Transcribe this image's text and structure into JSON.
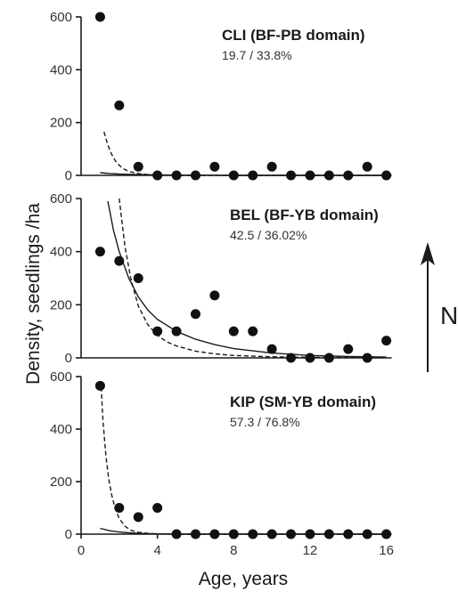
{
  "figure": {
    "ylabel": "Density, seedlings /ha",
    "xlabel": "Age, years",
    "north_label": "N",
    "colors": {
      "ink": "#1a1a1a",
      "points": "#111111"
    }
  },
  "chart_data": [
    {
      "type": "scatter",
      "title": "CLI (BF-PB domain)",
      "subtitle": "19.7 / 33.8%",
      "ylim": [
        0,
        600
      ],
      "yticks": [
        0,
        200,
        400,
        600
      ],
      "xlim": [
        0,
        17
      ],
      "x": [
        1,
        2,
        3,
        4,
        5,
        6,
        7,
        8,
        9,
        10,
        11,
        12,
        13,
        14,
        15,
        16
      ],
      "values": [
        600,
        265,
        33,
        0,
        0,
        0,
        33,
        0,
        0,
        33,
        0,
        0,
        0,
        0,
        33,
        0
      ],
      "fits": [
        {
          "style": "solid",
          "x": [
            1,
            1.5,
            2,
            2.5,
            3,
            4,
            5,
            6,
            8,
            10,
            12,
            14,
            16
          ],
          "y": [
            10,
            7,
            5,
            4,
            3,
            2,
            1,
            1,
            0,
            0,
            0,
            0,
            0
          ]
        },
        {
          "style": "dashed",
          "x": [
            1.2,
            1.4,
            1.6,
            1.8,
            2,
            2.2,
            2.5,
            3,
            3.5,
            4,
            5,
            6,
            8,
            10,
            12,
            14,
            16
          ],
          "y": [
            165,
            115,
            80,
            55,
            38,
            26,
            15,
            7,
            3,
            1,
            0,
            0,
            0,
            0,
            0,
            0,
            0
          ]
        }
      ]
    },
    {
      "type": "scatter",
      "title": "BEL (BF-YB domain)",
      "subtitle": "42.5  / 36.02%",
      "ylim": [
        0,
        600
      ],
      "yticks": [
        0,
        200,
        400,
        600
      ],
      "xlim": [
        0,
        17
      ],
      "x": [
        1,
        2,
        3,
        4,
        5,
        6,
        7,
        8,
        9,
        10,
        11,
        12,
        13,
        14,
        15,
        16
      ],
      "values": [
        400,
        365,
        300,
        100,
        100,
        165,
        235,
        100,
        100,
        33,
        0,
        0,
        0,
        33,
        0,
        65
      ],
      "fits": [
        {
          "style": "solid",
          "x": [
            1.4,
            1.7,
            2,
            2.5,
            3,
            3.5,
            4,
            5,
            6,
            7,
            8,
            10,
            12,
            14,
            16
          ],
          "y": [
            590,
            480,
            400,
            300,
            230,
            180,
            145,
            100,
            70,
            50,
            35,
            18,
            9,
            5,
            3
          ]
        },
        {
          "style": "dashed",
          "x": [
            2,
            2.3,
            2.6,
            3,
            3.5,
            4,
            4.5,
            5,
            6,
            7,
            8,
            10,
            12,
            14,
            16
          ],
          "y": [
            600,
            420,
            300,
            195,
            125,
            85,
            60,
            45,
            25,
            15,
            9,
            4,
            2,
            1,
            0
          ]
        }
      ]
    },
    {
      "type": "scatter",
      "title": "KIP (SM-YB domain)",
      "subtitle": "57.3  / 76.8%",
      "ylim": [
        0,
        600
      ],
      "yticks": [
        0,
        200,
        400,
        600
      ],
      "xlim": [
        0,
        17
      ],
      "xticks": [
        0,
        4,
        8,
        12,
        16
      ],
      "x": [
        1,
        2,
        3,
        4,
        5,
        6,
        7,
        8,
        9,
        10,
        11,
        12,
        13,
        14,
        15,
        16
      ],
      "values": [
        565,
        100,
        65,
        100,
        0,
        0,
        0,
        0,
        0,
        0,
        0,
        0,
        0,
        0,
        0,
        0
      ],
      "fits": [
        {
          "style": "solid",
          "x": [
            1,
            1.5,
            2,
            2.5,
            3,
            4,
            5,
            6,
            8,
            10,
            12,
            14,
            16
          ],
          "y": [
            22,
            13,
            8,
            5,
            3,
            1,
            0,
            0,
            0,
            0,
            0,
            0,
            0
          ]
        },
        {
          "style": "dashed",
          "x": [
            1.05,
            1.15,
            1.3,
            1.45,
            1.6,
            1.8,
            2,
            2.3,
            2.6,
            3,
            3.5,
            4,
            5,
            6,
            8,
            10,
            12,
            14,
            16
          ],
          "y": [
            560,
            430,
            300,
            210,
            150,
            95,
            60,
            30,
            15,
            7,
            3,
            1,
            0,
            0,
            0,
            0,
            0,
            0,
            0
          ]
        }
      ]
    }
  ]
}
